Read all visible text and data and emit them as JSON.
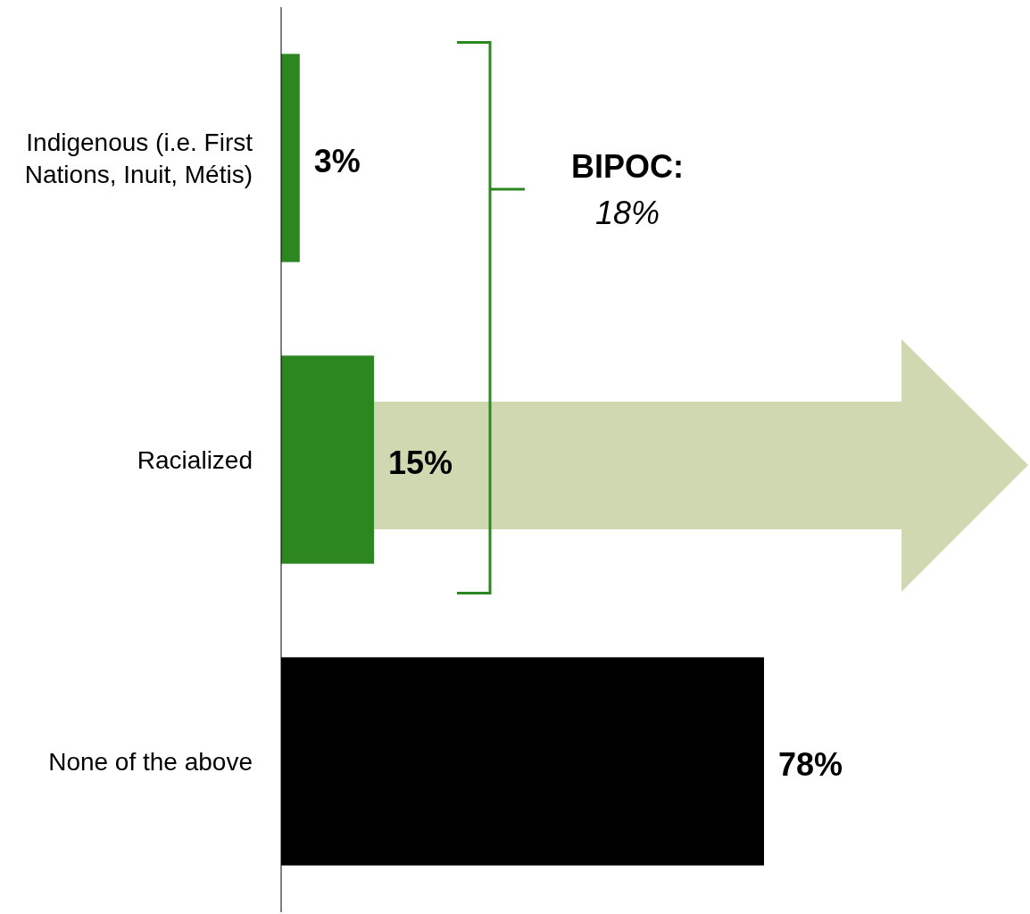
{
  "chart_data": {
    "type": "bar",
    "orientation": "horizontal",
    "categories": [
      "Indigenous (i.e. First Nations, Inuit, Métis)",
      "Racialized",
      "None of the above"
    ],
    "values": [
      3,
      15,
      78
    ],
    "colors": [
      "#2c8720",
      "#2c8720",
      "#000000"
    ],
    "value_labels": [
      "3%",
      "15%",
      "78%"
    ],
    "tick_labels": "y",
    "annotations": [
      "BIPOC:",
      "18%"
    ]
  }
}
